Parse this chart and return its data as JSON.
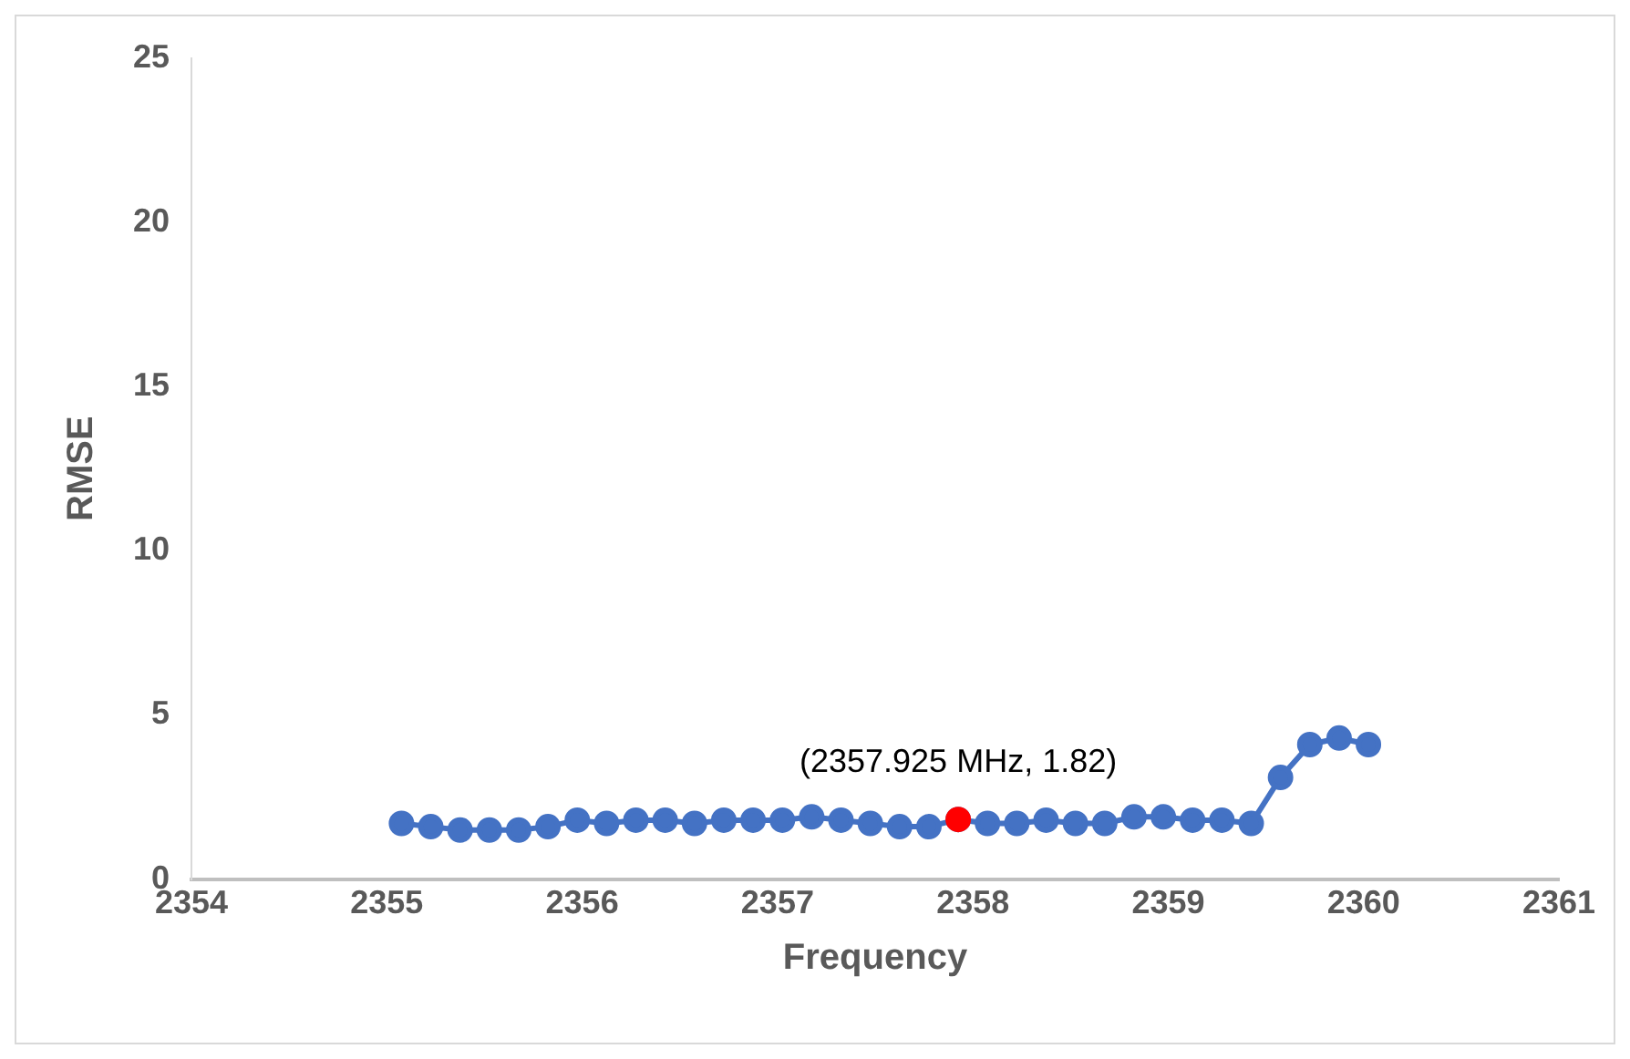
{
  "chart_data": {
    "type": "line",
    "xlabel": "Frequency",
    "ylabel": "RMSE",
    "x": [
      2355.075,
      2355.225,
      2355.375,
      2355.525,
      2355.675,
      2355.825,
      2355.975,
      2356.125,
      2356.275,
      2356.425,
      2356.575,
      2356.725,
      2356.875,
      2357.025,
      2357.175,
      2357.325,
      2357.475,
      2357.625,
      2357.775,
      2357.925,
      2358.075,
      2358.225,
      2358.375,
      2358.525,
      2358.675,
      2358.825,
      2358.975,
      2359.125,
      2359.275,
      2359.425,
      2359.575,
      2359.725,
      2359.875,
      2360.025
    ],
    "series": [
      {
        "color": "#4472c4",
        "values": [
          1.7,
          1.6,
          1.5,
          1.5,
          1.5,
          1.6,
          1.8,
          1.7,
          1.8,
          1.8,
          1.7,
          1.8,
          1.8,
          1.8,
          1.9,
          1.8,
          1.7,
          1.6,
          1.6,
          1.82,
          1.7,
          1.7,
          1.8,
          1.7,
          1.7,
          1.9,
          1.9,
          1.8,
          1.8,
          1.7,
          3.1,
          4.1,
          4.3,
          4.1
        ]
      },
      {
        "type": "scatter",
        "color": "#ff0000",
        "x": [
          2357.925
        ],
        "values": [
          1.82
        ]
      }
    ],
    "xlim": [
      2354,
      2361
    ],
    "xticks": [
      2354,
      2355,
      2356,
      2357,
      2358,
      2359,
      2360,
      2361
    ],
    "ylim": [
      0,
      25
    ],
    "yticks": [
      0,
      5,
      10,
      15,
      20,
      25
    ],
    "annotations": [
      {
        "text": "(2357.925 MHz, 1.82)",
        "x": 2357.925,
        "y": 1.82
      }
    ],
    "grid": false,
    "legend": false,
    "marker": "circle",
    "line_style": "solid"
  }
}
